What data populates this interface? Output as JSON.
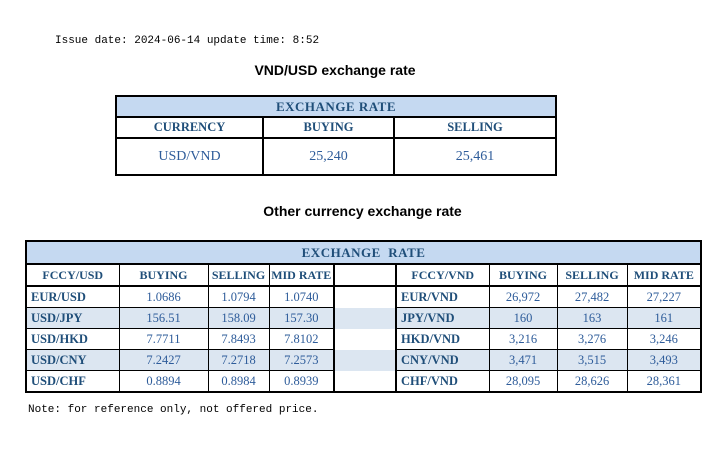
{
  "header": {
    "issue_line": "Issue date: 2024-06-14 update time: 8:52"
  },
  "usd_table": {
    "title": "VND/USD exchange rate",
    "band": "EXCHANGE RATE",
    "columns": [
      "CURRENCY",
      "BUYING",
      "SELLING"
    ],
    "rows": [
      [
        "USD/VND",
        "25,240",
        "25,461"
      ]
    ]
  },
  "other_table": {
    "title": "Other currency exchange rate",
    "band": "EXCHANGE  RATE",
    "left": {
      "columns": [
        "FCCY/USD",
        "BUYING",
        "SELLING",
        "MID RATE"
      ],
      "rows": [
        [
          "EUR/USD",
          "1.0686",
          "1.0794",
          "1.0740"
        ],
        [
          "USD/JPY",
          "156.51",
          "158.09",
          "157.30"
        ],
        [
          "USD/HKD",
          "7.7711",
          "7.8493",
          "7.8102"
        ],
        [
          "USD/CNY",
          "7.2427",
          "7.2718",
          "7.2573"
        ],
        [
          "USD/CHF",
          "0.8894",
          "0.8984",
          "0.8939"
        ]
      ]
    },
    "right": {
      "columns": [
        "FCCY/VND",
        "BUYING",
        "SELLING",
        "MID RATE"
      ],
      "rows": [
        [
          "EUR/VND",
          "26,972",
          "27,482",
          "27,227"
        ],
        [
          "JPY/VND",
          "160",
          "163",
          "161"
        ],
        [
          "HKD/VND",
          "3,216",
          "3,276",
          "3,246"
        ],
        [
          "CNY/VND",
          "3,471",
          "3,515",
          "3,493"
        ],
        [
          "CHF/VND",
          "28,095",
          "28,626",
          "28,361"
        ]
      ]
    }
  },
  "footer": {
    "note": "Note: for reference only, not offered price."
  },
  "colors": {
    "band_bg": "#c5d9f1",
    "alt_row_bg": "#dce6f1",
    "label_text": "#1f4e79",
    "value_text": "#2e5c9a",
    "border": "#000000"
  }
}
